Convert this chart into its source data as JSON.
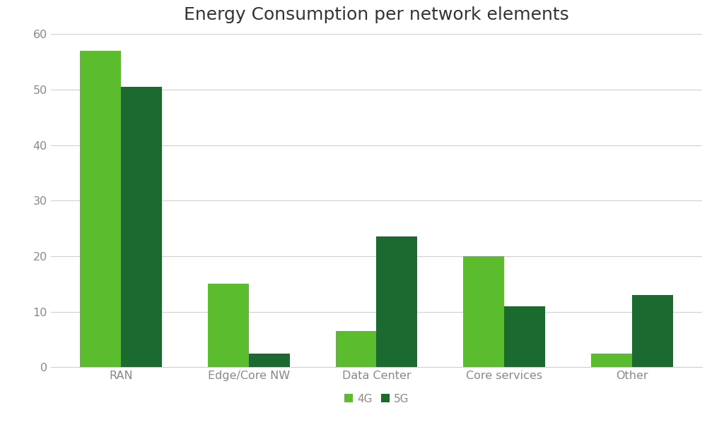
{
  "title": "Energy Consumption per network elements",
  "categories": [
    "RAN",
    "Edge/Core NW",
    "Data Center",
    "Core services",
    "Other"
  ],
  "series": {
    "4G": [
      57,
      15,
      6.5,
      20,
      2.5
    ],
    "5G": [
      50.5,
      2.5,
      23.5,
      11,
      13
    ]
  },
  "colors": {
    "4G": "#5BBD2E",
    "5G": "#1B6B30"
  },
  "ylim": [
    0,
    60
  ],
  "yticks": [
    0,
    10,
    20,
    30,
    40,
    50,
    60
  ],
  "bar_width": 0.32,
  "legend_labels": [
    "4G",
    "5G"
  ],
  "background_color": "#ffffff",
  "grid_color": "#d0d0d0",
  "title_fontsize": 18,
  "tick_fontsize": 11.5,
  "legend_fontsize": 11
}
